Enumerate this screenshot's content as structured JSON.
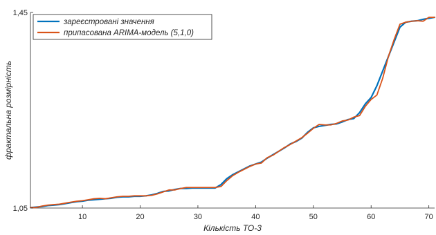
{
  "chart_data": {
    "type": "line",
    "xlabel": "Кількість ТО-3",
    "ylabel": "фрактальна розмірність",
    "xlim": [
      1,
      71
    ],
    "ylim": [
      1.05,
      1.45
    ],
    "xticks": [
      10,
      20,
      30,
      40,
      50,
      60,
      70
    ],
    "yticks": [
      1.05,
      1.45
    ],
    "ytick_labels": [
      "1,05",
      "1,45"
    ],
    "grid": false,
    "legend_position": "top-left",
    "series": [
      {
        "name": "зареєстровані значення",
        "color": "#0072BD",
        "x": [
          1,
          2,
          3,
          4,
          5,
          6,
          7,
          8,
          9,
          10,
          11,
          12,
          13,
          14,
          15,
          16,
          17,
          18,
          19,
          20,
          21,
          22,
          23,
          24,
          25,
          26,
          27,
          28,
          29,
          30,
          31,
          32,
          33,
          34,
          35,
          36,
          37,
          38,
          39,
          40,
          41,
          42,
          43,
          44,
          45,
          46,
          47,
          48,
          49,
          50,
          51,
          52,
          53,
          54,
          55,
          56,
          57,
          58,
          59,
          60,
          61,
          62,
          63,
          64,
          65,
          66,
          67,
          68,
          69,
          70,
          71
        ],
        "y": [
          1.051,
          1.052,
          1.053,
          1.055,
          1.056,
          1.057,
          1.059,
          1.061,
          1.063,
          1.064,
          1.066,
          1.067,
          1.068,
          1.069,
          1.07,
          1.072,
          1.073,
          1.073,
          1.074,
          1.074,
          1.075,
          1.077,
          1.08,
          1.084,
          1.085,
          1.088,
          1.09,
          1.09,
          1.091,
          1.091,
          1.091,
          1.091,
          1.091,
          1.098,
          1.11,
          1.118,
          1.124,
          1.13,
          1.136,
          1.14,
          1.144,
          1.152,
          1.159,
          1.166,
          1.173,
          1.181,
          1.186,
          1.193,
          1.205,
          1.214,
          1.217,
          1.219,
          1.221,
          1.222,
          1.226,
          1.231,
          1.233,
          1.245,
          1.263,
          1.276,
          1.3,
          1.33,
          1.36,
          1.39,
          1.42,
          1.43,
          1.432,
          1.433,
          1.436,
          1.438,
          1.44
        ]
      },
      {
        "name": "припасована ARIMA-модель (5,1,0)",
        "color": "#D95319",
        "x": [
          1,
          2,
          3,
          4,
          5,
          6,
          7,
          8,
          9,
          10,
          11,
          12,
          13,
          14,
          15,
          16,
          17,
          18,
          19,
          20,
          21,
          22,
          23,
          24,
          25,
          26,
          27,
          28,
          29,
          30,
          31,
          32,
          33,
          34,
          35,
          36,
          37,
          38,
          39,
          40,
          41,
          42,
          43,
          44,
          45,
          46,
          47,
          48,
          49,
          50,
          51,
          52,
          53,
          54,
          55,
          56,
          57,
          58,
          59,
          60,
          61,
          62,
          63,
          64,
          65,
          66,
          67,
          68,
          69,
          70,
          71
        ],
        "y": [
          1.051,
          1.051,
          1.054,
          1.056,
          1.057,
          1.058,
          1.06,
          1.062,
          1.064,
          1.065,
          1.067,
          1.069,
          1.07,
          1.069,
          1.071,
          1.073,
          1.074,
          1.074,
          1.075,
          1.075,
          1.075,
          1.076,
          1.079,
          1.083,
          1.087,
          1.087,
          1.09,
          1.092,
          1.092,
          1.092,
          1.092,
          1.092,
          1.092,
          1.094,
          1.106,
          1.116,
          1.123,
          1.129,
          1.135,
          1.14,
          1.142,
          1.153,
          1.158,
          1.166,
          1.174,
          1.18,
          1.187,
          1.194,
          1.203,
          1.213,
          1.221,
          1.22,
          1.22,
          1.223,
          1.228,
          1.23,
          1.236,
          1.239,
          1.258,
          1.272,
          1.281,
          1.315,
          1.36,
          1.395,
          1.426,
          1.43,
          1.432,
          1.433,
          1.432,
          1.44,
          1.44
        ]
      }
    ]
  }
}
